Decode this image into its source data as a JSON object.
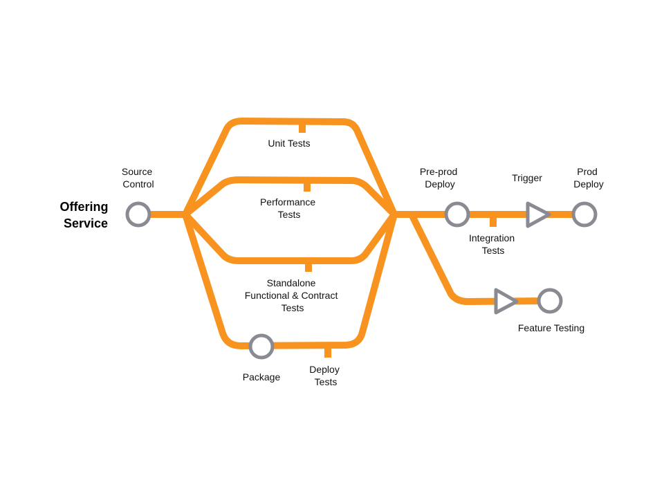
{
  "title": [
    "Offering",
    "Service"
  ],
  "stages": {
    "source_control": [
      "Source",
      "Control"
    ],
    "unit_tests": [
      "Unit Tests"
    ],
    "performance_tests": [
      "Performance",
      "Tests"
    ],
    "standalone_tests": [
      "Standalone",
      "Functional & Contract",
      "Tests"
    ],
    "package": [
      "Package"
    ],
    "deploy_tests": [
      "Deploy",
      "Tests"
    ],
    "preprod_deploy": [
      "Pre-prod",
      "Deploy"
    ],
    "integration_tests": [
      "Integration",
      "Tests"
    ],
    "trigger": [
      "Trigger"
    ],
    "prod_deploy": [
      "Prod",
      "Deploy"
    ],
    "feature_testing": [
      "Feature Testing"
    ]
  },
  "colors": {
    "track": "#F7931E",
    "node_stroke": "#8A8A92",
    "text": "#111111"
  },
  "icons": {
    "stop": "circle-node-icon",
    "trigger": "triangle-trigger-icon"
  }
}
